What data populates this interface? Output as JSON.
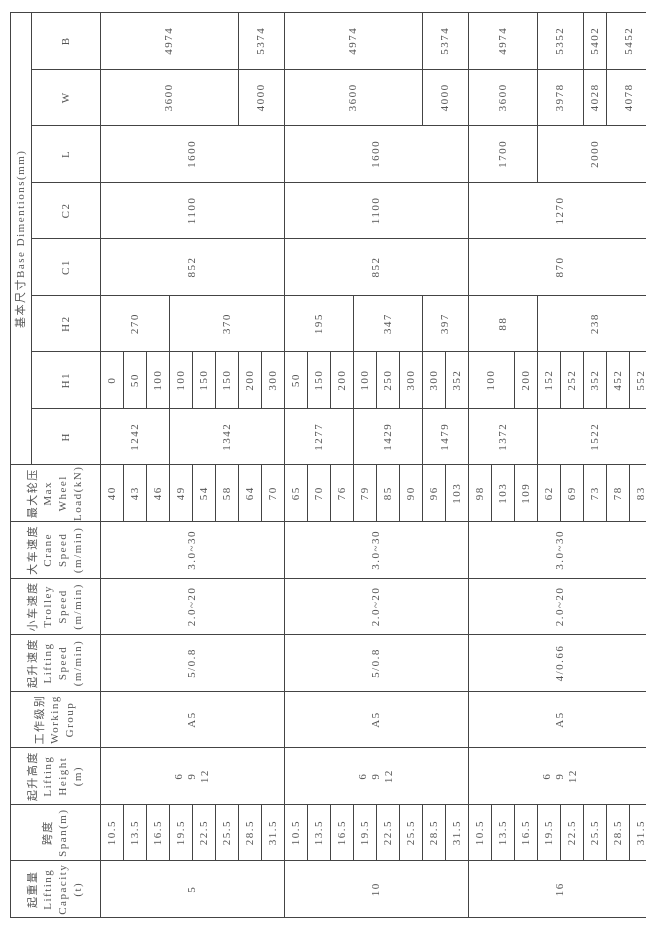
{
  "headers": {
    "capacity": "起重量\nLifting\nCapacity\n(t)",
    "span": "跨度\nSpan(m)",
    "lifting_height": "起升高度\nLifting\nHeight\n(m)",
    "working_group": "工作级别\nWorking\nGroup",
    "lifting_speed": "起升速度\nLifting\nSpeed\n(m/min)",
    "trolley_speed": "小车速度\nTrolley\nSpeed\n(m/min)",
    "crane_speed": "大车速度\nCrane\nSpeed\n(m/min)",
    "wheel_load": "最大轮压\nMax\nWheel\nLoad(kN)",
    "base": "基本尺寸Base Dimentions(mm)",
    "dims": [
      "H",
      "H1",
      "H2",
      "C1",
      "C2",
      "L",
      "W",
      "B"
    ]
  },
  "groups": [
    {
      "capacity": "5",
      "span": [
        "10.5",
        "13.5",
        "16.5",
        "19.5",
        "22.5",
        "25.5",
        "28.5",
        "31.5"
      ],
      "lifting_height": "6\n9\n12",
      "working_group": "A5",
      "lifting_speed": "5/0.8",
      "trolley_speed": "2.0~20",
      "crane_speed": "3.0~30",
      "wheel_load": [
        "40",
        "43",
        "46",
        "49",
        "54",
        "58",
        "64",
        "70"
      ],
      "H": [
        {
          "v": "1242",
          "rows": 3
        },
        {
          "v": "1342",
          "rows": 5
        }
      ],
      "H1": [
        "0",
        "50",
        "100",
        "100",
        "150",
        "150",
        "200",
        "300"
      ],
      "H2": [
        {
          "v": "270",
          "rows": 3
        },
        {
          "v": "370",
          "rows": 5
        }
      ],
      "C1": "852",
      "C2": "1100",
      "L": "1600",
      "W": [
        {
          "v": "3600",
          "rows": 6
        },
        {
          "v": "4000",
          "rows": 2
        }
      ],
      "B": [
        {
          "v": "4974",
          "rows": 6
        },
        {
          "v": "5374",
          "rows": 2
        }
      ]
    },
    {
      "capacity": "10",
      "span": [
        "10.5",
        "13.5",
        "16.5",
        "19.5",
        "22.5",
        "25.5",
        "28.5",
        "31.5"
      ],
      "lifting_height": "6\n9\n12",
      "working_group": "A5",
      "lifting_speed": "5/0.8",
      "trolley_speed": "2.0~20",
      "crane_speed": "3.0~30",
      "wheel_load": [
        "65",
        "70",
        "76",
        "79",
        "85",
        "90",
        "96",
        "103"
      ],
      "H": [
        {
          "v": "1277",
          "rows": 3
        },
        {
          "v": "1429",
          "rows": 3
        },
        {
          "v": "1479",
          "rows": 2
        }
      ],
      "H1": [
        "50",
        "150",
        "200",
        "100",
        "250",
        "300",
        "300",
        "352"
      ],
      "H2": [
        {
          "v": "195",
          "rows": 3
        },
        {
          "v": "347",
          "rows": 3
        },
        {
          "v": "397",
          "rows": 2
        }
      ],
      "C1": "852",
      "C2": "1100",
      "L": "1600",
      "W": [
        {
          "v": "3600",
          "rows": 6
        },
        {
          "v": "4000",
          "rows": 2
        }
      ],
      "B": [
        {
          "v": "4974",
          "rows": 6
        },
        {
          "v": "5374",
          "rows": 2
        }
      ]
    },
    {
      "capacity": "16",
      "span": [
        "10.5",
        "13.5",
        "16.5",
        "19.5",
        "22.5",
        "25.5",
        "28.5",
        "31.5"
      ],
      "lifting_height": "6\n9\n12",
      "working_group": "A5",
      "lifting_speed": "4/0.66",
      "trolley_speed": "2.0~20",
      "crane_speed": "3.0~30",
      "wheel_load": [
        "98",
        "103",
        "109",
        "62",
        "69",
        "73",
        "78",
        "83"
      ],
      "H": [
        {
          "v": "1372",
          "rows": 3
        },
        {
          "v": "1522",
          "rows": 5
        }
      ],
      "H1": [
        {
          "v": "100",
          "rows": 2
        },
        {
          "v": "200",
          "rows": 1
        },
        {
          "v": "152",
          "rows": 1
        },
        {
          "v": "252",
          "rows": 1
        },
        {
          "v": "352",
          "rows": 1
        },
        {
          "v": "452",
          "rows": 1
        },
        {
          "v": "552",
          "rows": 1
        }
      ],
      "H2": [
        {
          "v": "88",
          "rows": 3
        },
        {
          "v": "238",
          "rows": 5
        }
      ],
      "C1": "870",
      "C2": "1270",
      "L": [
        {
          "v": "1700",
          "rows": 3
        },
        {
          "v": "2000",
          "rows": 5
        }
      ],
      "W": [
        {
          "v": "3600",
          "rows": 3
        },
        {
          "v": "3978",
          "rows": 2
        },
        {
          "v": "4028",
          "rows": 1
        },
        {
          "v": "4078",
          "rows": 2
        }
      ],
      "B": [
        {
          "v": "4974",
          "rows": 3
        },
        {
          "v": "5352",
          "rows": 2
        },
        {
          "v": "5402",
          "rows": 1
        },
        {
          "v": "5452",
          "rows": 2
        }
      ]
    }
  ]
}
